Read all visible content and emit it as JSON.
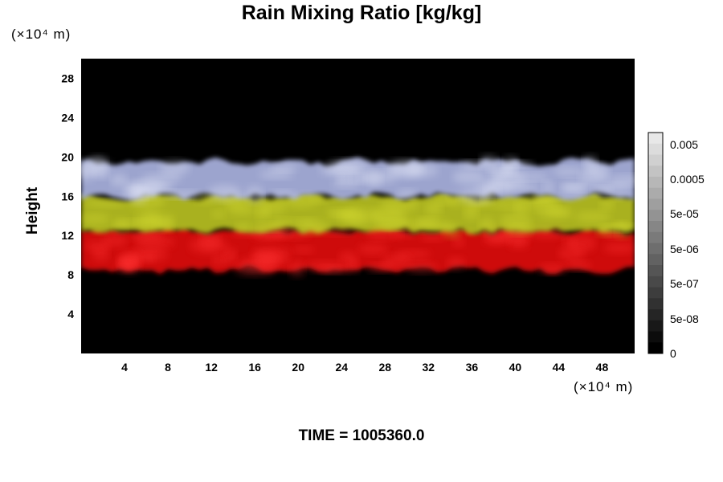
{
  "chart_data": {
    "type": "heatmap",
    "title": "Rain Mixing Ratio [kg/kg]",
    "ylabel": "Height",
    "x_unit": "(×10⁴ m)",
    "y_unit": "(×10⁴ m)",
    "x_ticks": [
      4,
      8,
      12,
      16,
      20,
      24,
      28,
      32,
      36,
      40,
      44,
      48
    ],
    "y_ticks": [
      4,
      8,
      12,
      16,
      20,
      24,
      28
    ],
    "xlim": [
      0,
      51
    ],
    "ylim": [
      0,
      30
    ],
    "colorbar": {
      "labels": [
        "0.005",
        "0.0005",
        "5e-05",
        "5e-06",
        "5e-07",
        "5e-08",
        "0"
      ],
      "scale": "log"
    },
    "bands": [
      {
        "name": "red",
        "color": "#e01010",
        "y_range": [
          8.5,
          12.5
        ]
      },
      {
        "name": "yellow",
        "color": "#b8c020",
        "y_range": [
          12.5,
          16.0
        ]
      },
      {
        "name": "lavender",
        "color": "#aab2e0",
        "y_range": [
          16.0,
          19.5
        ]
      }
    ],
    "background_color": "#000000"
  },
  "footer": {
    "time_label": "TIME = 1005360.0"
  }
}
